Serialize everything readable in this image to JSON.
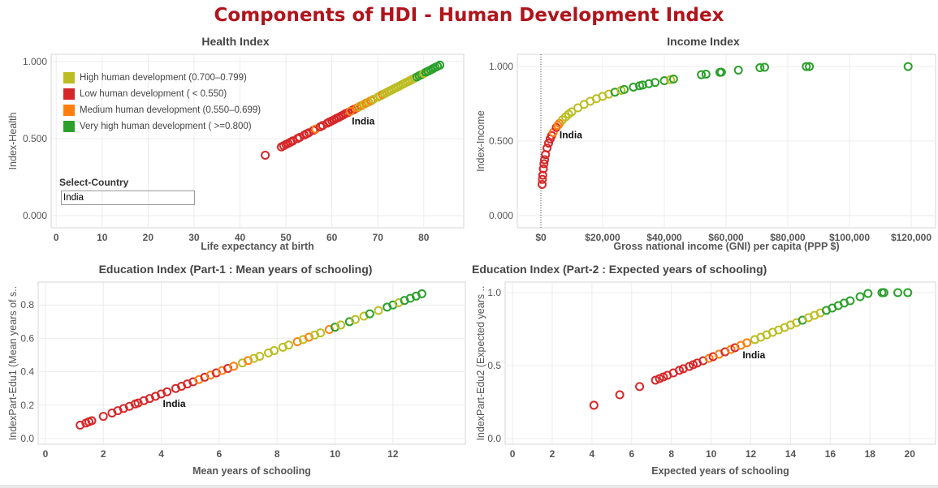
{
  "title": "Components of HDI - Human Development Index",
  "colors": {
    "H": "#bcbd22",
    "L": "#d62728",
    "M": "#ff7f0e",
    "V": "#2ca02c"
  },
  "legend": [
    {
      "code": "H",
      "label": "High human development (0.700–0.799)"
    },
    {
      "code": "L",
      "label": "Low human development ( < 0.550)"
    },
    {
      "code": "M",
      "label": "Medium human development (0.550–0.699)"
    },
    {
      "code": "V",
      "label": "Very high human development ( >=0.800)"
    }
  ],
  "filter": {
    "label": "Select-Country",
    "value": "India"
  },
  "chart_data": [
    {
      "type": "scatter",
      "title": "Health Index",
      "xlabel": "Life expectancy at birth",
      "ylabel": "Index-Health",
      "xlim": [
        -1.1,
        88.7
      ],
      "ylim": [
        -0.079,
        1.047
      ],
      "xticks": [
        0,
        10,
        20,
        30,
        40,
        50,
        60,
        70,
        80
      ],
      "xtick_labels": [
        "0",
        "10",
        "20",
        "30",
        "40",
        "50",
        "60",
        "70",
        "80"
      ],
      "yticks": [
        0,
        0.5,
        1
      ],
      "ytick_labels": [
        "0.000",
        "0.500",
        "1.000"
      ],
      "grid": true,
      "highlight": {
        "label": "India",
        "x": 64,
        "y": 0.677,
        "cat": "M"
      },
      "points": [
        [
          45.5,
          0.392,
          "L"
        ],
        [
          49,
          0.446,
          "L"
        ],
        [
          49.5,
          0.454,
          "L"
        ],
        [
          50,
          0.462,
          "L"
        ],
        [
          50.5,
          0.469,
          "L"
        ],
        [
          51,
          0.477,
          "L"
        ],
        [
          51.5,
          0.485,
          "L"
        ],
        [
          52.5,
          0.5,
          "L"
        ],
        [
          53,
          0.508,
          "L"
        ],
        [
          54,
          0.523,
          "L"
        ],
        [
          54.5,
          0.531,
          "L"
        ],
        [
          55,
          0.538,
          "L"
        ],
        [
          56,
          0.554,
          "L"
        ],
        [
          56.5,
          0.562,
          "M"
        ],
        [
          57.5,
          0.577,
          "L"
        ],
        [
          58,
          0.585,
          "L"
        ],
        [
          59,
          0.6,
          "L"
        ],
        [
          59.5,
          0.608,
          "L"
        ],
        [
          60,
          0.615,
          "L"
        ],
        [
          60.5,
          0.623,
          "L"
        ],
        [
          61,
          0.631,
          "L"
        ],
        [
          61.5,
          0.638,
          "L"
        ],
        [
          62,
          0.646,
          "L"
        ],
        [
          62.5,
          0.654,
          "L"
        ],
        [
          63,
          0.662,
          "L"
        ],
        [
          63.5,
          0.669,
          "L"
        ],
        [
          64.5,
          0.685,
          "L"
        ],
        [
          65,
          0.692,
          "L"
        ],
        [
          65.5,
          0.7,
          "M"
        ],
        [
          66,
          0.708,
          "H"
        ],
        [
          66.5,
          0.715,
          "M"
        ],
        [
          67,
          0.723,
          "H"
        ],
        [
          67.5,
          0.731,
          "M"
        ],
        [
          68,
          0.738,
          "H"
        ],
        [
          68.5,
          0.746,
          "M"
        ],
        [
          69,
          0.754,
          "H"
        ],
        [
          70,
          0.769,
          "H"
        ],
        [
          70.5,
          0.777,
          "H"
        ],
        [
          71,
          0.785,
          "M"
        ],
        [
          71.5,
          0.792,
          "H"
        ],
        [
          72,
          0.8,
          "H"
        ],
        [
          72.5,
          0.808,
          "H"
        ],
        [
          73,
          0.815,
          "H"
        ],
        [
          73.5,
          0.823,
          "H"
        ],
        [
          74,
          0.831,
          "H"
        ],
        [
          74.5,
          0.838,
          "H"
        ],
        [
          75,
          0.846,
          "H"
        ],
        [
          75.5,
          0.854,
          "H"
        ],
        [
          76,
          0.862,
          "H"
        ],
        [
          76.5,
          0.869,
          "H"
        ],
        [
          77,
          0.877,
          "H"
        ],
        [
          77.5,
          0.885,
          "H"
        ],
        [
          78,
          0.892,
          "H"
        ],
        [
          78.5,
          0.9,
          "V"
        ],
        [
          79,
          0.908,
          "V"
        ],
        [
          79.5,
          0.915,
          "V"
        ],
        [
          80,
          0.923,
          "H"
        ],
        [
          80.5,
          0.931,
          "V"
        ],
        [
          81,
          0.938,
          "V"
        ],
        [
          81.5,
          0.946,
          "V"
        ],
        [
          82,
          0.954,
          "V"
        ],
        [
          82.5,
          0.962,
          "V"
        ],
        [
          83,
          0.969,
          "V"
        ],
        [
          83.5,
          0.977,
          "V"
        ]
      ]
    },
    {
      "type": "scatter",
      "title": "Income Index",
      "xlabel": "Gross national income (GNI) per capita (PPP $)",
      "ylabel": "Index-Income",
      "xlim": [
        -7632,
        127895
      ],
      "ylim": [
        -0.082,
        1.082
      ],
      "xticks": [
        0,
        20000,
        40000,
        60000,
        80000,
        100000,
        120000
      ],
      "xtick_labels": [
        "$0",
        "$20,000",
        "$40,000",
        "$60,000",
        "$80,000",
        "$100,000",
        "$120,000"
      ],
      "yticks": [
        0,
        0.5,
        1
      ],
      "ytick_labels": [
        "0.000",
        "0.500",
        "1.000"
      ],
      "grid": true,
      "zero_reference_line": 0,
      "highlight": {
        "label": "India",
        "x": 5500,
        "y": 0.605,
        "cat": "M"
      },
      "points": [
        [
          400,
          0.209,
          "L"
        ],
        [
          500,
          0.243,
          "L"
        ],
        [
          600,
          0.271,
          "L"
        ],
        [
          800,
          0.314,
          "L"
        ],
        [
          1000,
          0.348,
          "L"
        ],
        [
          1200,
          0.375,
          "L"
        ],
        [
          1500,
          0.409,
          "L"
        ],
        [
          2000,
          0.453,
          "L"
        ],
        [
          2500,
          0.486,
          "L"
        ],
        [
          3000,
          0.514,
          "L"
        ],
        [
          3500,
          0.537,
          "L"
        ],
        [
          4000,
          0.557,
          "M"
        ],
        [
          5000,
          0.591,
          "L"
        ],
        [
          6000,
          0.618,
          "M"
        ],
        [
          7000,
          0.642,
          "H"
        ],
        [
          8000,
          0.662,
          "H"
        ],
        [
          9000,
          0.68,
          "H"
        ],
        [
          10000,
          0.696,
          "H"
        ],
        [
          12000,
          0.723,
          "H"
        ],
        [
          14000,
          0.746,
          "H"
        ],
        [
          16000,
          0.767,
          "H"
        ],
        [
          18000,
          0.784,
          "H"
        ],
        [
          20000,
          0.8,
          "H"
        ],
        [
          22000,
          0.815,
          "H"
        ],
        [
          24000,
          0.828,
          "V"
        ],
        [
          26000,
          0.84,
          "H"
        ],
        [
          27000,
          0.846,
          "V"
        ],
        [
          30000,
          0.862,
          "V"
        ],
        [
          32000,
          0.871,
          "V"
        ],
        [
          33000,
          0.876,
          "V"
        ],
        [
          35000,
          0.885,
          "V"
        ],
        [
          37000,
          0.893,
          "V"
        ],
        [
          40000,
          0.905,
          "V"
        ],
        [
          42000,
          0.912,
          "H"
        ],
        [
          43000,
          0.916,
          "V"
        ],
        [
          52000,
          0.945,
          "V"
        ],
        [
          53500,
          0.949,
          "V"
        ],
        [
          58000,
          0.961,
          "V"
        ],
        [
          58500,
          0.962,
          "V"
        ],
        [
          64000,
          0.976,
          "V"
        ],
        [
          71000,
          0.992,
          "V"
        ],
        [
          72500,
          0.995,
          "V"
        ],
        [
          86000,
          1.0,
          "V"
        ],
        [
          87000,
          1.0,
          "V"
        ],
        [
          119000,
          1.0,
          "V"
        ]
      ]
    },
    {
      "type": "scatter",
      "title": "Education Index (Part-1 : Mean years of schooling)",
      "xlabel": "Mean years of schooling",
      "ylabel": "IndexPart-Edu1 (Mean years of s..",
      "xlim": [
        -0.25,
        14.5
      ],
      "ylim": [
        -0.034,
        0.937
      ],
      "xticks": [
        0,
        2,
        4,
        6,
        8,
        10,
        12
      ],
      "xtick_labels": [
        "0",
        "2",
        "4",
        "6",
        "8",
        "10",
        "12"
      ],
      "yticks": [
        0,
        0.2,
        0.4,
        0.6,
        0.8
      ],
      "ytick_labels": [
        "0.0",
        "0.2",
        "0.4",
        "0.6",
        "0.8"
      ],
      "grid": true,
      "highlight": {
        "label": "India",
        "x": 4.0,
        "y": 0.267,
        "cat": "L"
      },
      "points": [
        [
          1.2,
          0.08,
          "L"
        ],
        [
          1.4,
          0.093,
          "L"
        ],
        [
          1.5,
          0.1,
          "L"
        ],
        [
          1.6,
          0.107,
          "L"
        ],
        [
          2.0,
          0.133,
          "L"
        ],
        [
          2.3,
          0.153,
          "L"
        ],
        [
          2.5,
          0.167,
          "L"
        ],
        [
          2.7,
          0.18,
          "L"
        ],
        [
          2.9,
          0.193,
          "L"
        ],
        [
          3.1,
          0.207,
          "L"
        ],
        [
          3.2,
          0.213,
          "L"
        ],
        [
          3.4,
          0.227,
          "L"
        ],
        [
          3.6,
          0.24,
          "L"
        ],
        [
          3.8,
          0.253,
          "L"
        ],
        [
          4.2,
          0.28,
          "L"
        ],
        [
          4.5,
          0.3,
          "L"
        ],
        [
          4.7,
          0.313,
          "L"
        ],
        [
          4.9,
          0.327,
          "L"
        ],
        [
          5.1,
          0.34,
          "L"
        ],
        [
          5.3,
          0.353,
          "M"
        ],
        [
          5.5,
          0.367,
          "L"
        ],
        [
          5.7,
          0.38,
          "M"
        ],
        [
          5.9,
          0.393,
          "L"
        ],
        [
          6.1,
          0.407,
          "M"
        ],
        [
          6.3,
          0.42,
          "L"
        ],
        [
          6.5,
          0.433,
          "M"
        ],
        [
          6.8,
          0.453,
          "H"
        ],
        [
          7.0,
          0.467,
          "M"
        ],
        [
          7.2,
          0.48,
          "H"
        ],
        [
          7.4,
          0.493,
          "H"
        ],
        [
          7.7,
          0.513,
          "H"
        ],
        [
          7.9,
          0.527,
          "H"
        ],
        [
          8.2,
          0.547,
          "H"
        ],
        [
          8.4,
          0.56,
          "H"
        ],
        [
          8.7,
          0.58,
          "M"
        ],
        [
          8.9,
          0.593,
          "H"
        ],
        [
          9.1,
          0.607,
          "M"
        ],
        [
          9.3,
          0.62,
          "H"
        ],
        [
          9.5,
          0.633,
          "H"
        ],
        [
          9.8,
          0.653,
          "M"
        ],
        [
          10.0,
          0.667,
          "V"
        ],
        [
          10.2,
          0.68,
          "H"
        ],
        [
          10.5,
          0.7,
          "V"
        ],
        [
          10.7,
          0.713,
          "H"
        ],
        [
          11.0,
          0.733,
          "H"
        ],
        [
          11.2,
          0.747,
          "V"
        ],
        [
          11.5,
          0.767,
          "H"
        ],
        [
          11.8,
          0.787,
          "V"
        ],
        [
          12.0,
          0.8,
          "V"
        ],
        [
          12.2,
          0.813,
          "H"
        ],
        [
          12.4,
          0.827,
          "V"
        ],
        [
          12.6,
          0.84,
          "V"
        ],
        [
          12.8,
          0.853,
          "V"
        ],
        [
          13.0,
          0.867,
          "V"
        ]
      ]
    },
    {
      "type": "scatter",
      "title": "Education Index (Part-2 : Expected years of schooling)",
      "xlabel": "Expected years of schooling",
      "ylabel": "IndexPart-Edu2 (Expected years ..",
      "xlim": [
        -0.37,
        21.3
      ],
      "ylim": [
        -0.039,
        1.072
      ],
      "xticks": [
        0,
        2,
        4,
        6,
        8,
        10,
        12,
        14,
        16,
        18,
        20
      ],
      "xtick_labels": [
        "0",
        "2",
        "4",
        "6",
        "8",
        "10",
        "12",
        "14",
        "16",
        "18",
        "20"
      ],
      "yticks": [
        0,
        0.5,
        1
      ],
      "ytick_labels": [
        "0.0",
        "0.5",
        "1.0"
      ],
      "grid": true,
      "highlight": {
        "label": "India",
        "x": 11.5,
        "y": 0.639,
        "cat": "M"
      },
      "points": [
        [
          4.1,
          0.228,
          "L"
        ],
        [
          5.4,
          0.3,
          "L"
        ],
        [
          6.4,
          0.356,
          "L"
        ],
        [
          7.2,
          0.4,
          "L"
        ],
        [
          7.4,
          0.411,
          "L"
        ],
        [
          7.6,
          0.422,
          "L"
        ],
        [
          7.8,
          0.433,
          "L"
        ],
        [
          8.1,
          0.45,
          "L"
        ],
        [
          8.4,
          0.467,
          "L"
        ],
        [
          8.6,
          0.478,
          "L"
        ],
        [
          8.9,
          0.494,
          "L"
        ],
        [
          9.1,
          0.506,
          "L"
        ],
        [
          9.3,
          0.517,
          "L"
        ],
        [
          9.6,
          0.533,
          "L"
        ],
        [
          9.9,
          0.55,
          "M"
        ],
        [
          10.1,
          0.561,
          "L"
        ],
        [
          10.4,
          0.578,
          "M"
        ],
        [
          10.7,
          0.594,
          "L"
        ],
        [
          11.0,
          0.611,
          "M"
        ],
        [
          11.2,
          0.622,
          "L"
        ],
        [
          11.8,
          0.656,
          "M"
        ],
        [
          12.2,
          0.678,
          "H"
        ],
        [
          12.5,
          0.694,
          "H"
        ],
        [
          12.8,
          0.711,
          "H"
        ],
        [
          13.1,
          0.728,
          "H"
        ],
        [
          13.4,
          0.744,
          "H"
        ],
        [
          13.7,
          0.761,
          "H"
        ],
        [
          14.0,
          0.778,
          "H"
        ],
        [
          14.3,
          0.794,
          "H"
        ],
        [
          14.6,
          0.811,
          "V"
        ],
        [
          14.9,
          0.828,
          "H"
        ],
        [
          15.2,
          0.844,
          "H"
        ],
        [
          15.5,
          0.861,
          "H"
        ],
        [
          15.8,
          0.878,
          "V"
        ],
        [
          16.1,
          0.894,
          "V"
        ],
        [
          16.4,
          0.911,
          "V"
        ],
        [
          16.7,
          0.928,
          "V"
        ],
        [
          17.0,
          0.944,
          "V"
        ],
        [
          17.5,
          0.972,
          "V"
        ],
        [
          17.9,
          0.994,
          "V"
        ],
        [
          18.6,
          1.0,
          "V"
        ],
        [
          18.7,
          1.0,
          "V"
        ],
        [
          19.4,
          1.0,
          "V"
        ],
        [
          19.9,
          1.0,
          "V"
        ]
      ]
    }
  ]
}
